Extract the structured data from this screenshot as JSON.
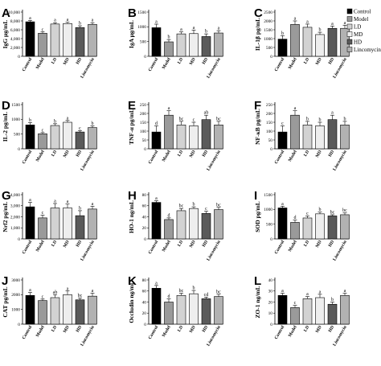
{
  "colors": {
    "Control": "#000000",
    "Model": "#9a9a9a",
    "LD": "#d2d2d2",
    "MD": "#eeeeee",
    "HD": "#5a5a5a",
    "Lincomycin": "#b2b2b2"
  },
  "legend": {
    "items": [
      "Control",
      "Model",
      "LD",
      "MD",
      "HD",
      "Lincomycin"
    ],
    "placement": "right of panel C"
  },
  "chart_data": [
    {
      "panel": "A",
      "type": "bar",
      "ylabel": "IgG μg/mL",
      "categories": [
        "Control",
        "Model",
        "LD",
        "MD",
        "HD",
        "Lincomycin"
      ],
      "values": [
        7800,
        5200,
        7300,
        7400,
        6500,
        7200
      ],
      "errors": [
        300,
        300,
        300,
        300,
        400,
        400
      ],
      "letters": [
        "a",
        "c",
        "a",
        "a",
        "b",
        "a"
      ],
      "ylim": [
        0,
        10000
      ],
      "yticks": [
        0,
        2000,
        4000,
        6000,
        8000,
        10000
      ],
      "yticklabels": [
        "0",
        "2,000",
        "4,000",
        "6,000",
        "8,000",
        "10,000"
      ]
    },
    {
      "panel": "B",
      "type": "bar",
      "ylabel": "IgA μg/mL",
      "categories": [
        "Control",
        "Model",
        "LD",
        "MD",
        "HD",
        "Lincomycin"
      ],
      "values": [
        970,
        490,
        760,
        770,
        670,
        790
      ],
      "errors": [
        120,
        80,
        70,
        120,
        90,
        80
      ],
      "letters": [
        "a",
        "b",
        "a",
        "a",
        "b",
        "a"
      ],
      "ylim": [
        0,
        1500
      ],
      "yticks": [
        0,
        500,
        1000,
        1500
      ],
      "yticklabels": [
        "0",
        "500",
        "1000",
        "1500"
      ]
    },
    {
      "panel": "C",
      "type": "bar",
      "ylabel": "IL-1β pg/mL",
      "categories": [
        "Control",
        "Model",
        "LD",
        "MD",
        "HD",
        "Lincomycin"
      ],
      "values": [
        970,
        1800,
        1640,
        1230,
        1580,
        1580
      ],
      "errors": [
        200,
        200,
        180,
        130,
        130,
        180
      ],
      "letters": [
        "b",
        "a",
        "a",
        "b",
        "a",
        "a"
      ],
      "ylim": [
        0,
        2500
      ],
      "yticks": [
        0,
        500,
        1000,
        1500,
        2000,
        2500
      ],
      "yticklabels": [
        "0",
        "500",
        "1000",
        "1500",
        "2000",
        "2500"
      ]
    },
    {
      "panel": "D",
      "type": "bar",
      "ylabel": "IL-2 pg/mL",
      "categories": [
        "Control",
        "Model",
        "LD",
        "MD",
        "HD",
        "Lincomycin"
      ],
      "values": [
        810,
        510,
        790,
        900,
        570,
        720
      ],
      "errors": [
        80,
        40,
        60,
        60,
        50,
        60
      ],
      "letters": [
        "b",
        "c",
        "b",
        "a",
        "c",
        "b"
      ],
      "ylim": [
        0,
        1500
      ],
      "yticks": [
        0,
        500,
        1000,
        1500
      ],
      "yticklabels": [
        "0",
        "500",
        "1000",
        "1500"
      ]
    },
    {
      "panel": "E",
      "type": "bar",
      "ylabel": "TNF-α pg/mL",
      "categories": [
        "Control",
        "Model",
        "LD",
        "MD",
        "HD",
        "Lincomycin"
      ],
      "values": [
        95,
        190,
        135,
        130,
        165,
        135
      ],
      "errors": [
        35,
        25,
        20,
        20,
        25,
        20
      ],
      "letters": [
        "d",
        "a",
        "bc",
        "c",
        "ab",
        "bc"
      ],
      "ylim": [
        0,
        250
      ],
      "yticks": [
        0,
        50,
        100,
        150,
        200,
        250
      ],
      "yticklabels": [
        "0",
        "50",
        "100",
        "150",
        "200",
        "250"
      ]
    },
    {
      "panel": "F",
      "type": "bar",
      "ylabel": "NF-κB pg/mL",
      "categories": [
        "Control",
        "Model",
        "LD",
        "MD",
        "HD",
        "Lincomycin"
      ],
      "values": [
        95,
        190,
        135,
        130,
        165,
        135
      ],
      "errors": [
        35,
        25,
        20,
        20,
        25,
        20
      ],
      "letters": [
        "c",
        "a",
        "b",
        "b",
        "a",
        "b"
      ],
      "ylim": [
        0,
        250
      ],
      "yticks": [
        0,
        50,
        100,
        150,
        200,
        250
      ],
      "yticklabels": [
        "0",
        "50",
        "100",
        "150",
        "200",
        "250"
      ]
    },
    {
      "panel": "G",
      "type": "bar",
      "ylabel": "Nrf2 pg/mL",
      "categories": [
        "Control",
        "Model",
        "LD",
        "MD",
        "HD",
        "Lincomycin"
      ],
      "values": [
        2900,
        1900,
        2800,
        2800,
        2100,
        2700
      ],
      "errors": [
        400,
        250,
        400,
        350,
        450,
        250
      ],
      "letters": [
        "a",
        "c",
        "a",
        "a",
        "b",
        "a"
      ],
      "ylim": [
        0,
        4000
      ],
      "yticks": [
        0,
        1000,
        2000,
        3000,
        4000
      ],
      "yticklabels": [
        "0",
        "1,000",
        "2,000",
        "3,000",
        "4,000"
      ]
    },
    {
      "panel": "H",
      "type": "bar",
      "ylabel": "HO-1 ng/mL",
      "categories": [
        "Control",
        "Model",
        "LD",
        "MD",
        "HD",
        "Lincomycin"
      ],
      "values": [
        66,
        35,
        51,
        55,
        46,
        53
      ],
      "errors": [
        3,
        3,
        4,
        3,
        4,
        4
      ],
      "letters": [
        "a",
        "d",
        "bc",
        "b",
        "c",
        "bc"
      ],
      "ylim": [
        0,
        80
      ],
      "yticks": [
        0,
        20,
        40,
        60,
        80
      ],
      "yticklabels": [
        "0",
        "20",
        "40",
        "60",
        "80"
      ]
    },
    {
      "panel": "I",
      "type": "bar",
      "ylabel": "SOD pg/mL",
      "categories": [
        "Control",
        "Model",
        "LD",
        "MD",
        "HD",
        "Lincomycin"
      ],
      "values": [
        1050,
        560,
        710,
        850,
        780,
        820
      ],
      "errors": [
        60,
        80,
        70,
        60,
        40,
        60
      ],
      "letters": [
        "a",
        "d",
        "c",
        "b",
        "bc",
        "bc"
      ],
      "ylim": [
        0,
        1500
      ],
      "yticks": [
        0,
        500,
        1000,
        1500
      ],
      "yticklabels": [
        "0",
        "500",
        "1000",
        "1500"
      ]
    },
    {
      "panel": "J",
      "type": "bar",
      "ylabel": "CAT pg/mL",
      "categories": [
        "Control",
        "Model",
        "LD",
        "MD",
        "HD",
        "Lincomycin"
      ],
      "values": [
        1950,
        1600,
        1800,
        2000,
        1650,
        1900
      ],
      "errors": [
        200,
        100,
        200,
        250,
        120,
        200
      ],
      "letters": [
        "a",
        "c",
        "ab",
        "a",
        "bc",
        "a"
      ],
      "ylim": [
        0,
        3000
      ],
      "yticks": [
        0,
        1000,
        2000,
        3000
      ],
      "yticklabels": [
        "0",
        "1000",
        "2000",
        "3000"
      ]
    },
    {
      "panel": "K",
      "type": "bar",
      "ylabel": "Occludin ng/mL",
      "categories": [
        "Control",
        "Model",
        "LD",
        "MD",
        "HD",
        "Lincomycin"
      ],
      "values": [
        65,
        40,
        52,
        55,
        46,
        50
      ],
      "errors": [
        5,
        6,
        4,
        6,
        3,
        4
      ],
      "letters": [
        "a",
        "d",
        "bc",
        "b",
        "cd",
        "bc"
      ],
      "ylim": [
        0,
        80
      ],
      "yticks": [
        0,
        20,
        40,
        60,
        80
      ],
      "yticklabels": [
        "0",
        "20",
        "40",
        "60",
        "80"
      ]
    },
    {
      "panel": "L",
      "type": "bar",
      "ylabel": "ZO-1 ng/mL",
      "categories": [
        "Control",
        "Model",
        "LD",
        "MD",
        "HD",
        "Lincomycin"
      ],
      "values": [
        26,
        15,
        23,
        24,
        18,
        26
      ],
      "errors": [
        2,
        2,
        2,
        3,
        2,
        2
      ],
      "letters": [
        "a",
        "c",
        "a",
        "a",
        "b",
        "a"
      ],
      "ylim": [
        0,
        40
      ],
      "yticks": [
        0,
        10,
        20,
        30,
        40
      ],
      "yticklabels": [
        "0",
        "10",
        "20",
        "30",
        "40"
      ]
    }
  ]
}
